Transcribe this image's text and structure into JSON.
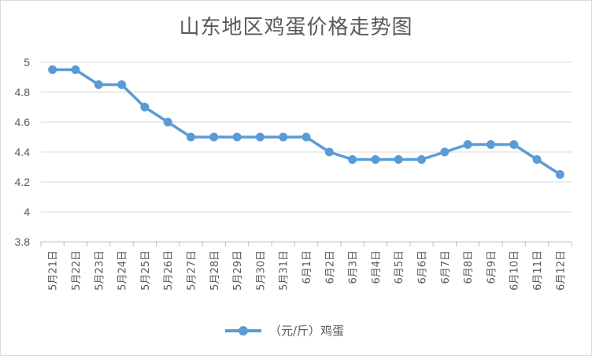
{
  "chart_data": {
    "type": "line",
    "title": "山东地区鸡蛋价格走势图",
    "categories": [
      "5月21日",
      "5月22日",
      "5月23日",
      "5月24日",
      "5月25日",
      "5月26日",
      "5月27日",
      "5月28日",
      "5月29日",
      "5月30日",
      "5月31日",
      "6月1日",
      "6月2日",
      "6月3日",
      "6月4日",
      "6月5日",
      "6月6日",
      "6月7日",
      "6月8日",
      "6月9日",
      "6月10日",
      "6月11日",
      "6月12日"
    ],
    "series": [
      {
        "name": "（元/斤）鸡蛋",
        "color": "#5b9bd5",
        "values": [
          4.95,
          4.95,
          4.85,
          4.85,
          4.7,
          4.6,
          4.5,
          4.5,
          4.5,
          4.5,
          4.5,
          4.5,
          4.4,
          4.35,
          4.35,
          4.35,
          4.35,
          4.4,
          4.45,
          4.45,
          4.45,
          4.35,
          4.25
        ]
      }
    ],
    "ylim": [
      3.8,
      5
    ],
    "yticks": [
      "3.8",
      "4",
      "4.2",
      "4.4",
      "4.6",
      "4.8",
      "5"
    ],
    "grid": true,
    "legend": "bottom"
  }
}
